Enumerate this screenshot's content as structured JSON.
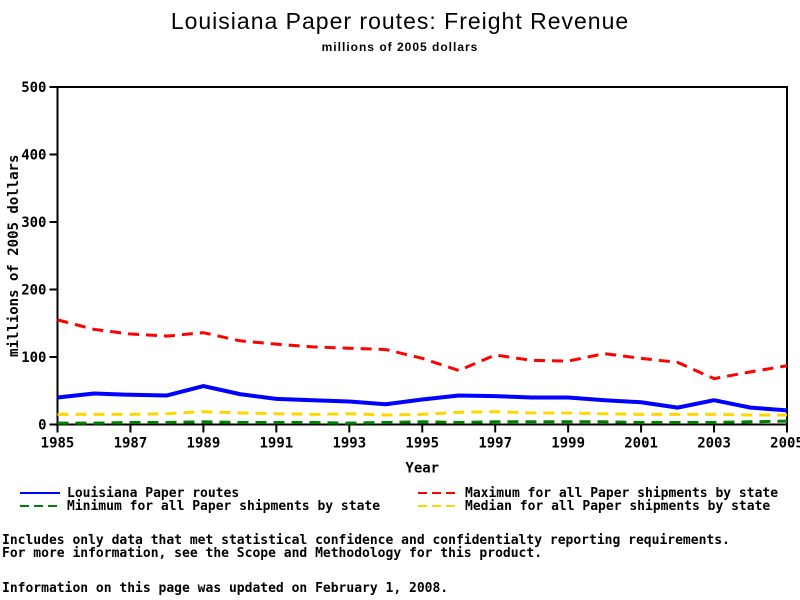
{
  "title": "Louisiana Paper routes: Freight Revenue",
  "subtitle": "millions of 2005 dollars",
  "chart_data": {
    "type": "line",
    "title": "Louisiana Paper routes: Freight Revenue",
    "subtitle": "millions of 2005 dollars",
    "xlabel": "Year",
    "ylabel": "millions of 2005 dollars",
    "ylim": [
      0,
      500
    ],
    "yticks": [
      0,
      100,
      200,
      300,
      400,
      500
    ],
    "xticks": [
      1985,
      1987,
      1989,
      1991,
      1993,
      1995,
      1997,
      1999,
      2001,
      2003,
      2005
    ],
    "grid": false,
    "frame": true,
    "background": "#FFFFFF",
    "axis_color": "#000000",
    "legend_position": "bottom",
    "x": [
      1985,
      1986,
      1987,
      1988,
      1989,
      1990,
      1991,
      1992,
      1993,
      1994,
      1995,
      1996,
      1997,
      1998,
      1999,
      2000,
      2001,
      2002,
      2003,
      2004,
      2005
    ],
    "series": [
      {
        "name": "Louisiana Paper routes",
        "color": "#0000FF",
        "dash": "solid",
        "width": 4,
        "values": [
          40,
          46,
          44,
          43,
          57,
          45,
          38,
          36,
          34,
          30,
          37,
          43,
          42,
          40,
          40,
          36,
          33,
          25,
          36,
          25,
          21
        ]
      },
      {
        "name": "Maximum for all Paper shipments by state",
        "color": "#FF0000",
        "dash": "dashed",
        "width": 3,
        "values": [
          155,
          141,
          134,
          131,
          136,
          124,
          119,
          115,
          113,
          111,
          98,
          80,
          103,
          95,
          94,
          105,
          98,
          92,
          68,
          78,
          87
        ]
      },
      {
        "name": "Minimum for all Paper shipments by state",
        "color": "#008000",
        "dash": "dashed",
        "width": 3,
        "values": [
          2,
          2,
          3,
          3,
          4,
          3,
          3,
          3,
          2,
          3,
          4,
          3,
          4,
          4,
          4,
          4,
          3,
          3,
          3,
          4,
          5
        ]
      },
      {
        "name": "Median for all Paper shipments by state",
        "color": "#FFD700",
        "dash": "dashed",
        "width": 3,
        "values": [
          15,
          15,
          15,
          16,
          19,
          17,
          16,
          15,
          16,
          14,
          15,
          18,
          19,
          17,
          17,
          16,
          15,
          15,
          15,
          14,
          14
        ]
      }
    ]
  },
  "legend": {
    "items": [
      {
        "label": "Louisiana Paper routes",
        "series": 0,
        "col": 0,
        "row": 0
      },
      {
        "label": "Minimum for all Paper shipments by state",
        "series": 2,
        "col": 0,
        "row": 1
      },
      {
        "label": "Maximum for all Paper shipments by state",
        "series": 1,
        "col": 1,
        "row": 0
      },
      {
        "label": "Median for all Paper shipments by state",
        "series": 3,
        "col": 1,
        "row": 1
      }
    ]
  },
  "footer": {
    "line1": "Includes only data that met statistical confidence and confidentialty reporting requirements.",
    "line2": "For more information, see the Scope and Methodology for this product.",
    "line3": "Information on this page was updated on February 1, 2008."
  }
}
